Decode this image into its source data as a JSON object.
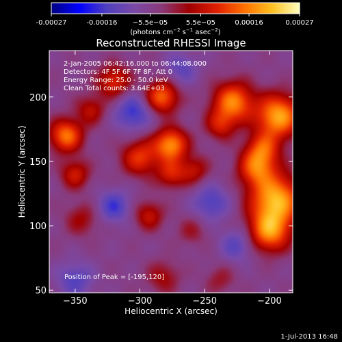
{
  "chart_data": {
    "type": "heatmap",
    "title": "Reconstructed RHESSI Image",
    "xlabel": "Heliocentric X (arcsec)",
    "ylabel": "Heliocentric Y (arcsec)",
    "xlim": [
      -370,
      -182
    ],
    "ylim": [
      48,
      236
    ],
    "xticks": [
      -350,
      -300,
      -250,
      -200
    ],
    "yticks": [
      50,
      100,
      150,
      200
    ],
    "colorbar": {
      "range": [
        -0.00027,
        0.00027
      ],
      "tick_values": [
        -0.00027,
        -0.00016,
        -5.5e-05,
        5.5e-05,
        0.00016,
        0.00027
      ],
      "tick_labels": [
        "-0.00027",
        "-0.00016",
        "−5.5e−05",
        "5.5e−05",
        "0.00016",
        "0.00027"
      ],
      "units_prefix": "(photons cm",
      "units_exp1": "−2",
      "units_mid": " s",
      "units_exp2": "−1",
      "units_mid2": " asec",
      "units_exp3": "−2",
      "units_suffix": ")"
    },
    "annotations": [
      "2-Jan-2005 06:42:16.000 to 06:44:08.000",
      "Detectors: 4F 5F 6F 7F 8F, Att 0",
      "Energy Range: 25.0 - 50.0 keV",
      "Clean     Total counts: 3.64E+03"
    ],
    "peak_label": "Position of Peak = [-195,120]",
    "peak": [
      -195,
      120
    ],
    "colormap_stops": [
      "#000080",
      "#0000ff",
      "#5040c0",
      "#7a4aa8",
      "#8a3a7a",
      "#a00000",
      "#e02000",
      "#ff7000",
      "#ffc020",
      "#ffffc0"
    ],
    "sources": [
      {
        "x": -195,
        "y": 120,
        "sigma": 14,
        "amp": 0.00025
      },
      {
        "x": -200,
        "y": 95,
        "sigma": 11,
        "amp": 0.0002
      },
      {
        "x": -210,
        "y": 145,
        "sigma": 10,
        "amp": 0.00017
      },
      {
        "x": -193,
        "y": 185,
        "sigma": 12,
        "amp": 0.00024
      },
      {
        "x": -205,
        "y": 160,
        "sigma": 9,
        "amp": 0.00014
      },
      {
        "x": -228,
        "y": 196,
        "sigma": 11,
        "amp": 0.00021
      },
      {
        "x": -238,
        "y": 178,
        "sigma": 8,
        "amp": 0.00011
      },
      {
        "x": -276,
        "y": 163,
        "sigma": 9,
        "amp": 0.00022
      },
      {
        "x": -276,
        "y": 140,
        "sigma": 8,
        "amp": 0.00012
      },
      {
        "x": -300,
        "y": 153,
        "sigma": 10,
        "amp": 0.00015
      },
      {
        "x": -258,
        "y": 143,
        "sigma": 8,
        "amp": 0.0001
      },
      {
        "x": -283,
        "y": 200,
        "sigma": 9,
        "amp": 0.00019
      },
      {
        "x": -320,
        "y": 212,
        "sigma": 9,
        "amp": 0.00014
      },
      {
        "x": -357,
        "y": 170,
        "sigma": 9,
        "amp": 0.0002
      },
      {
        "x": -350,
        "y": 140,
        "sigma": 8,
        "amp": 0.00012
      },
      {
        "x": -338,
        "y": 190,
        "sigma": 8,
        "amp": 0.0001
      },
      {
        "x": -345,
        "y": 105,
        "sigma": 9,
        "amp": 8e-05
      },
      {
        "x": -293,
        "y": 108,
        "sigma": 8,
        "amp": 0.00011
      },
      {
        "x": -260,
        "y": 96,
        "sigma": 8,
        "amp": 6e-05
      },
      {
        "x": -282,
        "y": 60,
        "sigma": 9,
        "amp": 8e-05
      },
      {
        "x": -238,
        "y": 58,
        "sigma": 8,
        "amp": 6e-05
      },
      {
        "x": -305,
        "y": 188,
        "sigma": 10,
        "amp": -0.00012
      },
      {
        "x": -245,
        "y": 118,
        "sigma": 10,
        "amp": -0.0001
      },
      {
        "x": -320,
        "y": 115,
        "sigma": 9,
        "amp": -0.00011
      },
      {
        "x": -350,
        "y": 58,
        "sigma": 10,
        "amp": -9e-05
      },
      {
        "x": -268,
        "y": 222,
        "sigma": 9,
        "amp": -8e-05
      },
      {
        "x": -225,
        "y": 85,
        "sigma": 9,
        "amp": -9e-05
      }
    ]
  },
  "footer": {
    "date": "1-Jul-2013 16:48"
  }
}
